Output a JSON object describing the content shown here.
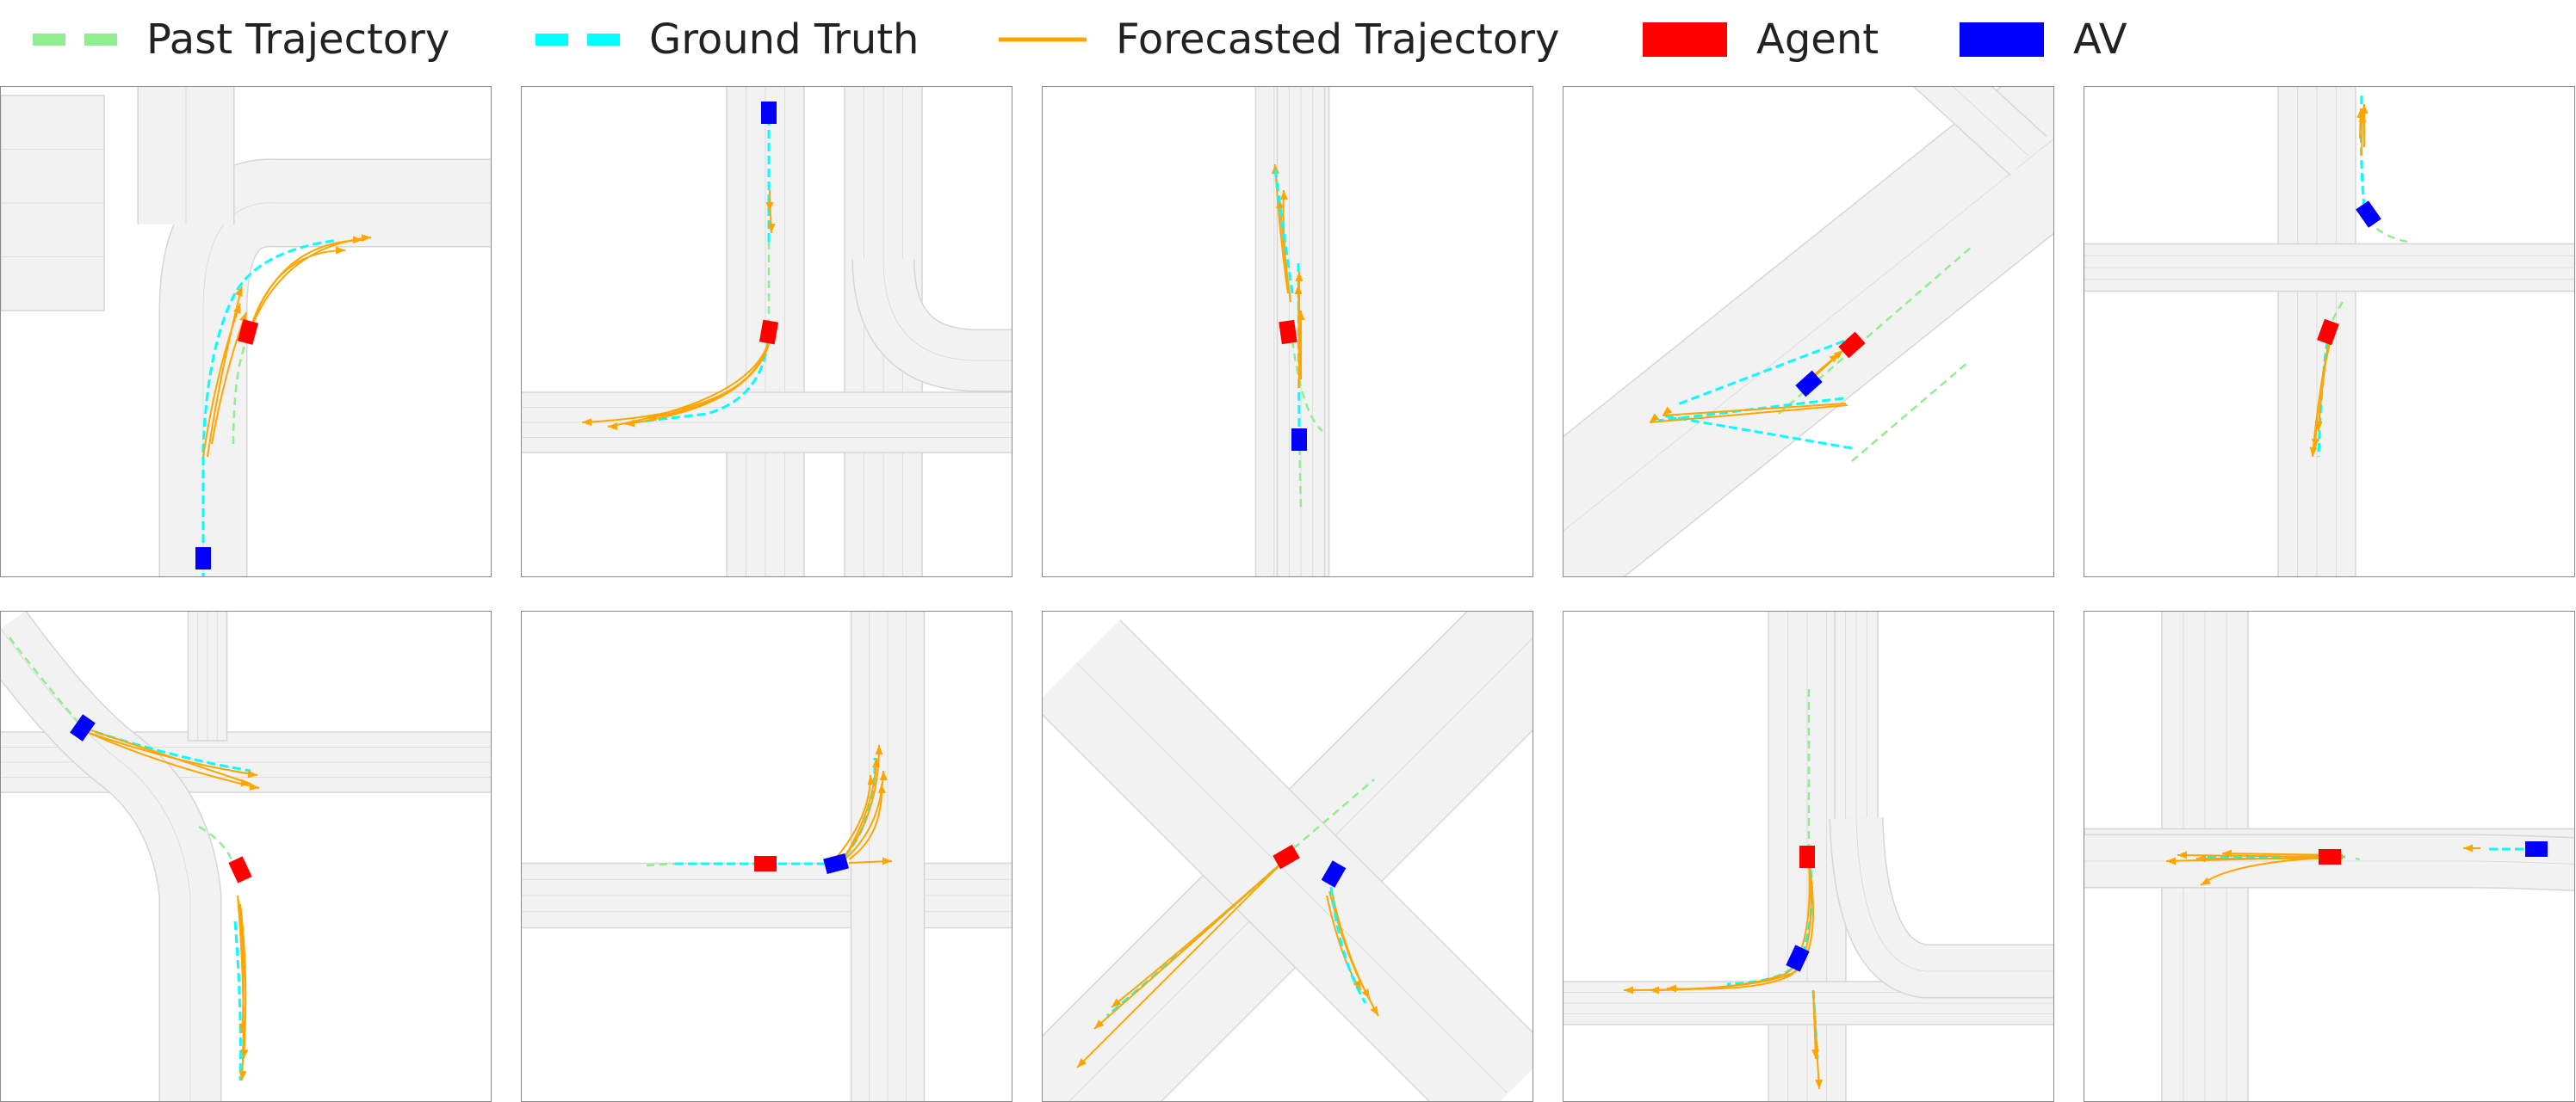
{
  "legend": [
    {
      "label": "Past Trajectory",
      "kind": "past",
      "color": "#90ee90"
    },
    {
      "label": "Ground Truth",
      "kind": "gt",
      "color": "#00ffff"
    },
    {
      "label": "Forecasted Trajectory",
      "kind": "forecast",
      "color": "#ffa500"
    },
    {
      "label": "Agent",
      "kind": "agent",
      "color": "#ff0000"
    },
    {
      "label": "AV",
      "kind": "av",
      "color": "#0000ff"
    }
  ],
  "colors": {
    "road_fill": "#f2f2f2",
    "road_line": "#d6d6d6",
    "past": "#90ee90",
    "gt": "#00ffff",
    "forecast": "#ffa500",
    "agent": "#ff0000",
    "av": "#0000ff"
  },
  "scenes": [
    {
      "id": "scene-1",
      "map": "T-junction with right branch, straight road south",
      "agent_maneuver": "right turn",
      "forecast_count": 6
    },
    {
      "id": "scene-2",
      "map": "cross intersection",
      "agent_maneuver": "left turn",
      "forecast_count": 6
    },
    {
      "id": "scene-3",
      "map": "straight road",
      "agent_maneuver": "straight",
      "forecast_count": 6
    },
    {
      "id": "scene-4",
      "map": "diagonal multi-lane road",
      "agent_maneuver": "straight",
      "forecast_count": 6
    },
    {
      "id": "scene-5",
      "map": "T-junction",
      "agent_maneuver": "straight",
      "forecast_count": 6
    },
    {
      "id": "scene-6",
      "map": "junction with curved road",
      "agent_maneuver": "straight",
      "forecast_count": 6
    },
    {
      "id": "scene-7",
      "map": "T-junction",
      "agent_maneuver": "left turn",
      "forecast_count": 6
    },
    {
      "id": "scene-8",
      "map": "diagonal cross intersection",
      "agent_maneuver": "straight",
      "forecast_count": 6
    },
    {
      "id": "scene-9",
      "map": "T-junction",
      "agent_maneuver": "right turn",
      "forecast_count": 6
    },
    {
      "id": "scene-10",
      "map": "T-junction",
      "agent_maneuver": "straight",
      "forecast_count": 6
    }
  ]
}
